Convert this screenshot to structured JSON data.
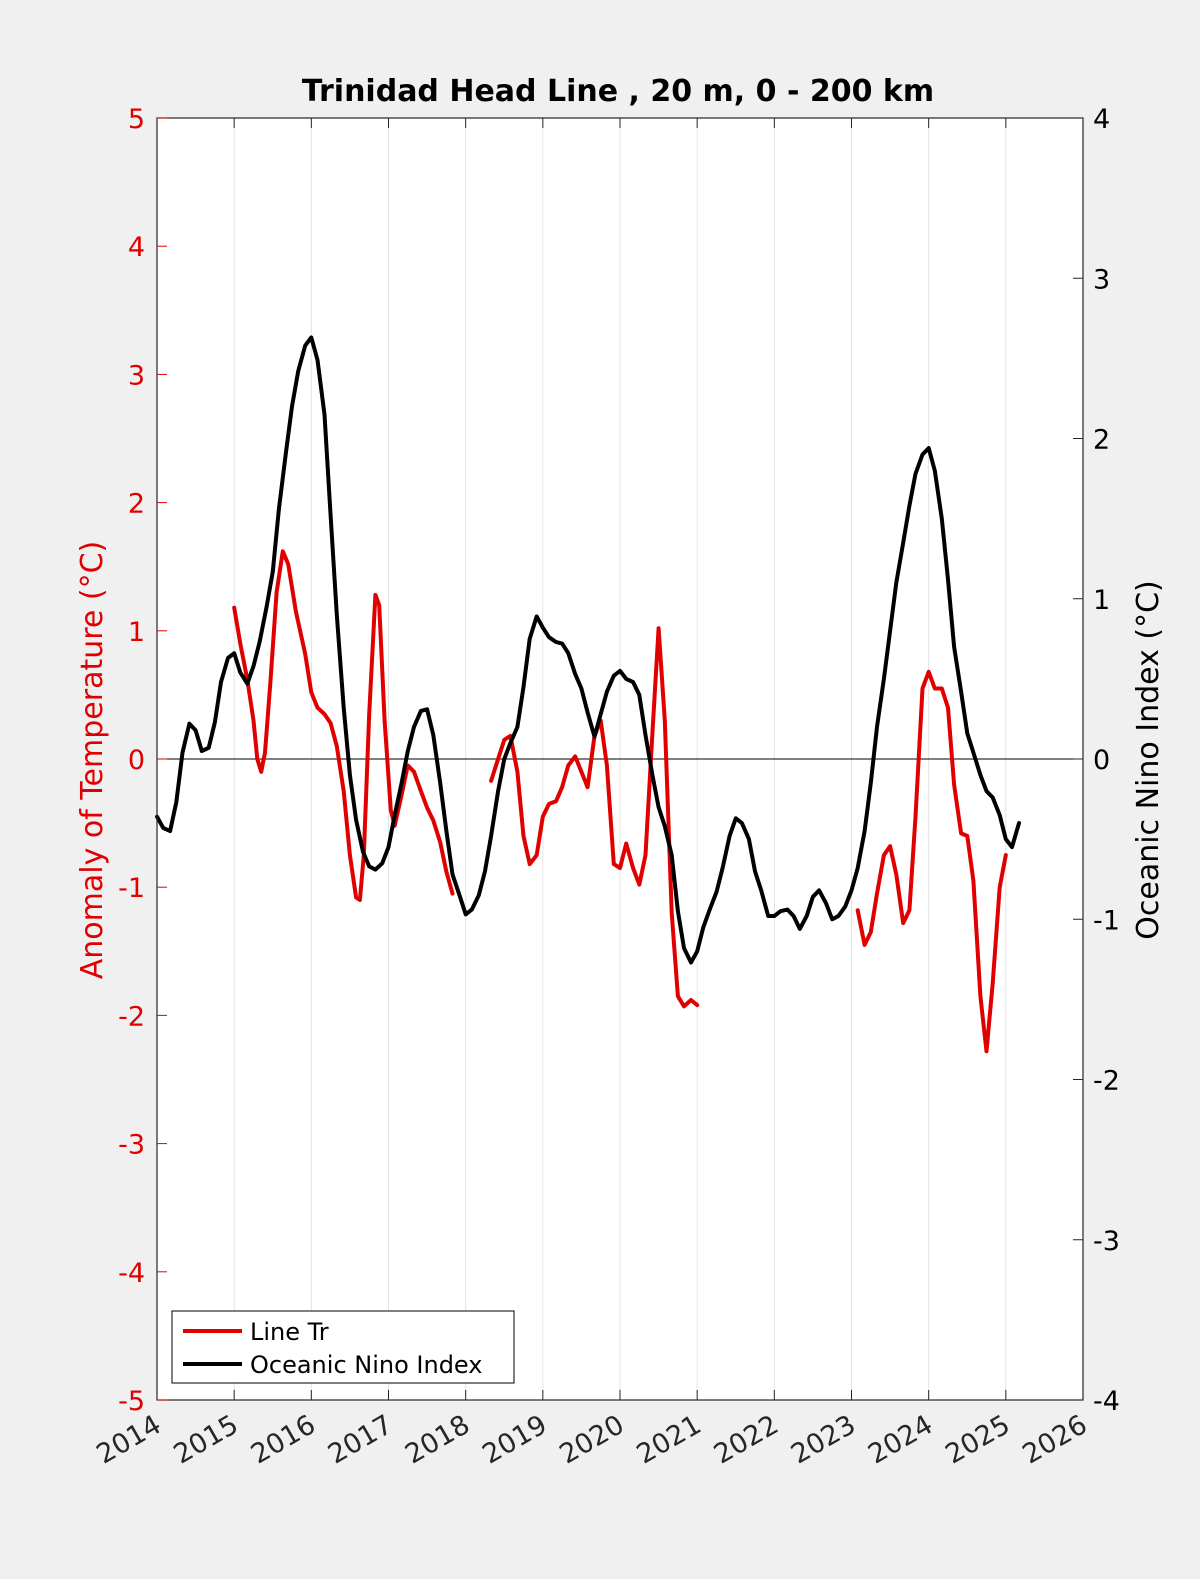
{
  "colors": {
    "figure_bg": "#f0f0f0",
    "axes_bg": "#ffffff",
    "line_tr": "#e00000",
    "oni": "#000000",
    "left_axis": "#e00000",
    "right_axis": "#000000",
    "grid": "#e3e3e3"
  },
  "chart_data": {
    "type": "line",
    "title": "Trinidad Head Line , 20 m, 0 - 200 km",
    "xlabel": "",
    "ylabel": "Anomaly of Temperature (°C)",
    "ylabel_right": "Oceanic Nino Index (°C)",
    "xlim": [
      2014,
      2026
    ],
    "ylim": [
      -5,
      5
    ],
    "ylim_right": [
      -4,
      4
    ],
    "x_ticks": [
      2014,
      2015,
      2016,
      2017,
      2018,
      2019,
      2020,
      2021,
      2022,
      2023,
      2024,
      2025,
      2026
    ],
    "x_tick_labels": [
      "2014",
      "2015",
      "2016",
      "2017",
      "2018",
      "2019",
      "2020",
      "2021",
      "2022",
      "2023",
      "2024",
      "2025",
      "2026"
    ],
    "y_ticks": [
      -5,
      -4,
      -3,
      -2,
      -1,
      0,
      1,
      2,
      3,
      4,
      5
    ],
    "y_tick_labels": [
      "-5",
      "-4",
      "-3",
      "-2",
      "-1",
      "0",
      "1",
      "2",
      "3",
      "4",
      "5"
    ],
    "y_ticks_right": [
      -4,
      -3,
      -2,
      -1,
      0,
      1,
      2,
      3,
      4
    ],
    "y_tick_labels_right": [
      "-4",
      "-3",
      "-2",
      "-1",
      "0",
      "1",
      "2",
      "3",
      "4"
    ],
    "grid": "vertical",
    "zero_line": true,
    "legend_position": "bottom-left",
    "series": [
      {
        "name": "Line Tr",
        "axis": "left",
        "color": "#e00000",
        "segments": [
          [
            [
              2015.0,
              1.18
            ],
            [
              2015.08,
              0.9
            ],
            [
              2015.17,
              0.62
            ],
            [
              2015.25,
              0.3
            ],
            [
              2015.3,
              0.0
            ],
            [
              2015.35,
              -0.1
            ],
            [
              2015.4,
              0.05
            ],
            [
              2015.47,
              0.6
            ],
            [
              2015.55,
              1.3
            ],
            [
              2015.63,
              1.62
            ],
            [
              2015.7,
              1.52
            ],
            [
              2015.8,
              1.15
            ],
            [
              2015.92,
              0.82
            ],
            [
              2016.0,
              0.52
            ],
            [
              2016.08,
              0.4
            ],
            [
              2016.17,
              0.35
            ],
            [
              2016.25,
              0.28
            ],
            [
              2016.33,
              0.1
            ],
            [
              2016.42,
              -0.25
            ],
            [
              2016.5,
              -0.75
            ],
            [
              2016.58,
              -1.08
            ],
            [
              2016.63,
              -1.1
            ],
            [
              2016.68,
              -0.75
            ],
            [
              2016.75,
              0.35
            ],
            [
              2016.83,
              1.28
            ],
            [
              2016.88,
              1.2
            ],
            [
              2016.95,
              0.3
            ],
            [
              2017.03,
              -0.4
            ],
            [
              2017.08,
              -0.52
            ],
            [
              2017.17,
              -0.28
            ],
            [
              2017.25,
              -0.05
            ],
            [
              2017.33,
              -0.1
            ],
            [
              2017.42,
              -0.25
            ],
            [
              2017.5,
              -0.38
            ],
            [
              2017.58,
              -0.48
            ],
            [
              2017.67,
              -0.65
            ],
            [
              2017.75,
              -0.88
            ],
            [
              2017.83,
              -1.05
            ]
          ],
          [
            [
              2018.33,
              -0.17
            ],
            [
              2018.42,
              0.0
            ],
            [
              2018.5,
              0.15
            ],
            [
              2018.58,
              0.18
            ],
            [
              2018.67,
              -0.1
            ],
            [
              2018.75,
              -0.6
            ],
            [
              2018.83,
              -0.82
            ],
            [
              2018.92,
              -0.75
            ],
            [
              2019.0,
              -0.45
            ],
            [
              2019.08,
              -0.35
            ],
            [
              2019.17,
              -0.33
            ],
            [
              2019.25,
              -0.22
            ],
            [
              2019.33,
              -0.05
            ],
            [
              2019.42,
              0.02
            ],
            [
              2019.5,
              -0.1
            ],
            [
              2019.58,
              -0.22
            ],
            [
              2019.67,
              0.18
            ],
            [
              2019.75,
              0.3
            ],
            [
              2019.83,
              -0.05
            ],
            [
              2019.92,
              -0.82
            ],
            [
              2020.0,
              -0.85
            ],
            [
              2020.08,
              -0.66
            ],
            [
              2020.17,
              -0.85
            ],
            [
              2020.25,
              -0.98
            ],
            [
              2020.33,
              -0.75
            ],
            [
              2020.42,
              0.2
            ],
            [
              2020.5,
              1.02
            ],
            [
              2020.58,
              0.3
            ],
            [
              2020.67,
              -1.2
            ],
            [
              2020.75,
              -1.85
            ],
            [
              2020.83,
              -1.93
            ],
            [
              2020.92,
              -1.88
            ],
            [
              2021.0,
              -1.92
            ]
          ],
          [
            [
              2023.08,
              -1.18
            ],
            [
              2023.17,
              -1.45
            ],
            [
              2023.25,
              -1.35
            ],
            [
              2023.33,
              -1.05
            ],
            [
              2023.42,
              -0.75
            ],
            [
              2023.5,
              -0.68
            ],
            [
              2023.58,
              -0.9
            ],
            [
              2023.67,
              -1.28
            ],
            [
              2023.75,
              -1.18
            ],
            [
              2023.83,
              -0.45
            ],
            [
              2023.92,
              0.55
            ],
            [
              2024.0,
              0.68
            ],
            [
              2024.08,
              0.55
            ],
            [
              2024.17,
              0.55
            ],
            [
              2024.25,
              0.4
            ],
            [
              2024.33,
              -0.2
            ],
            [
              2024.42,
              -0.58
            ],
            [
              2024.5,
              -0.6
            ],
            [
              2024.58,
              -0.95
            ],
            [
              2024.67,
              -1.85
            ],
            [
              2024.75,
              -2.28
            ],
            [
              2024.83,
              -1.75
            ],
            [
              2024.92,
              -1.0
            ],
            [
              2025.0,
              -0.75
            ]
          ]
        ]
      },
      {
        "name": "Oceanic Nino Index",
        "axis": "right",
        "color": "#000000",
        "segments": [
          [
            [
              2014.0,
              -0.36
            ],
            [
              2014.08,
              -0.43
            ],
            [
              2014.17,
              -0.45
            ],
            [
              2014.25,
              -0.27
            ],
            [
              2014.33,
              0.04
            ],
            [
              2014.42,
              0.22
            ],
            [
              2014.5,
              0.18
            ],
            [
              2014.58,
              0.05
            ],
            [
              2014.67,
              0.07
            ],
            [
              2014.75,
              0.23
            ],
            [
              2014.83,
              0.48
            ],
            [
              2014.92,
              0.63
            ],
            [
              2015.0,
              0.66
            ],
            [
              2015.08,
              0.54
            ],
            [
              2015.17,
              0.47
            ],
            [
              2015.25,
              0.58
            ],
            [
              2015.33,
              0.73
            ],
            [
              2015.42,
              0.95
            ],
            [
              2015.5,
              1.17
            ],
            [
              2015.58,
              1.56
            ],
            [
              2015.67,
              1.91
            ],
            [
              2015.75,
              2.2
            ],
            [
              2015.83,
              2.42
            ],
            [
              2015.92,
              2.58
            ],
            [
              2016.0,
              2.63
            ],
            [
              2016.08,
              2.49
            ],
            [
              2016.17,
              2.15
            ],
            [
              2016.25,
              1.52
            ],
            [
              2016.33,
              0.9
            ],
            [
              2016.42,
              0.32
            ],
            [
              2016.5,
              -0.1
            ],
            [
              2016.58,
              -0.38
            ],
            [
              2016.67,
              -0.58
            ],
            [
              2016.75,
              -0.67
            ],
            [
              2016.83,
              -0.69
            ],
            [
              2016.92,
              -0.65
            ],
            [
              2017.0,
              -0.55
            ],
            [
              2017.08,
              -0.35
            ],
            [
              2017.17,
              -0.15
            ],
            [
              2017.25,
              0.05
            ],
            [
              2017.33,
              0.2
            ],
            [
              2017.42,
              0.3
            ],
            [
              2017.5,
              0.31
            ],
            [
              2017.58,
              0.15
            ],
            [
              2017.67,
              -0.15
            ],
            [
              2017.75,
              -0.45
            ],
            [
              2017.83,
              -0.72
            ],
            [
              2017.92,
              -0.85
            ],
            [
              2018.0,
              -0.97
            ],
            [
              2018.08,
              -0.94
            ],
            [
              2018.17,
              -0.85
            ],
            [
              2018.25,
              -0.7
            ],
            [
              2018.33,
              -0.48
            ],
            [
              2018.42,
              -0.2
            ],
            [
              2018.5,
              0.0
            ],
            [
              2018.58,
              0.1
            ],
            [
              2018.67,
              0.2
            ],
            [
              2018.75,
              0.45
            ],
            [
              2018.83,
              0.75
            ],
            [
              2018.92,
              0.89
            ],
            [
              2019.0,
              0.82
            ],
            [
              2019.08,
              0.76
            ],
            [
              2019.17,
              0.73
            ],
            [
              2019.25,
              0.72
            ],
            [
              2019.33,
              0.66
            ],
            [
              2019.42,
              0.53
            ],
            [
              2019.5,
              0.44
            ],
            [
              2019.58,
              0.29
            ],
            [
              2019.67,
              0.14
            ],
            [
              2019.75,
              0.28
            ],
            [
              2019.83,
              0.42
            ],
            [
              2019.92,
              0.52
            ],
            [
              2020.0,
              0.55
            ],
            [
              2020.08,
              0.5
            ],
            [
              2020.17,
              0.48
            ],
            [
              2020.25,
              0.4
            ],
            [
              2020.33,
              0.15
            ],
            [
              2020.42,
              -0.1
            ],
            [
              2020.5,
              -0.3
            ],
            [
              2020.58,
              -0.42
            ],
            [
              2020.67,
              -0.6
            ],
            [
              2020.75,
              -0.95
            ],
            [
              2020.83,
              -1.18
            ],
            [
              2020.92,
              -1.27
            ],
            [
              2021.0,
              -1.2
            ],
            [
              2021.08,
              -1.05
            ],
            [
              2021.17,
              -0.93
            ],
            [
              2021.25,
              -0.83
            ],
            [
              2021.33,
              -0.68
            ],
            [
              2021.42,
              -0.48
            ],
            [
              2021.5,
              -0.37
            ],
            [
              2021.58,
              -0.4
            ],
            [
              2021.67,
              -0.5
            ],
            [
              2021.75,
              -0.7
            ],
            [
              2021.83,
              -0.82
            ],
            [
              2021.92,
              -0.98
            ],
            [
              2022.0,
              -0.98
            ],
            [
              2022.08,
              -0.95
            ],
            [
              2022.17,
              -0.94
            ],
            [
              2022.25,
              -0.98
            ],
            [
              2022.33,
              -1.06
            ],
            [
              2022.42,
              -0.98
            ],
            [
              2022.5,
              -0.86
            ],
            [
              2022.58,
              -0.82
            ],
            [
              2022.67,
              -0.9
            ],
            [
              2022.75,
              -1.0
            ],
            [
              2022.83,
              -0.98
            ],
            [
              2022.92,
              -0.92
            ],
            [
              2023.0,
              -0.82
            ],
            [
              2023.08,
              -0.68
            ],
            [
              2023.17,
              -0.45
            ],
            [
              2023.25,
              -0.15
            ],
            [
              2023.33,
              0.2
            ],
            [
              2023.42,
              0.5
            ],
            [
              2023.5,
              0.8
            ],
            [
              2023.58,
              1.1
            ],
            [
              2023.67,
              1.35
            ],
            [
              2023.75,
              1.58
            ],
            [
              2023.83,
              1.78
            ],
            [
              2023.92,
              1.9
            ],
            [
              2024.0,
              1.94
            ],
            [
              2024.08,
              1.8
            ],
            [
              2024.17,
              1.5
            ],
            [
              2024.25,
              1.12
            ],
            [
              2024.33,
              0.7
            ],
            [
              2024.42,
              0.42
            ],
            [
              2024.5,
              0.16
            ],
            [
              2024.58,
              0.04
            ],
            [
              2024.67,
              -0.1
            ],
            [
              2024.75,
              -0.2
            ],
            [
              2024.83,
              -0.24
            ],
            [
              2024.92,
              -0.35
            ],
            [
              2025.0,
              -0.5
            ],
            [
              2025.08,
              -0.55
            ],
            [
              2025.17,
              -0.4
            ]
          ]
        ]
      }
    ]
  }
}
